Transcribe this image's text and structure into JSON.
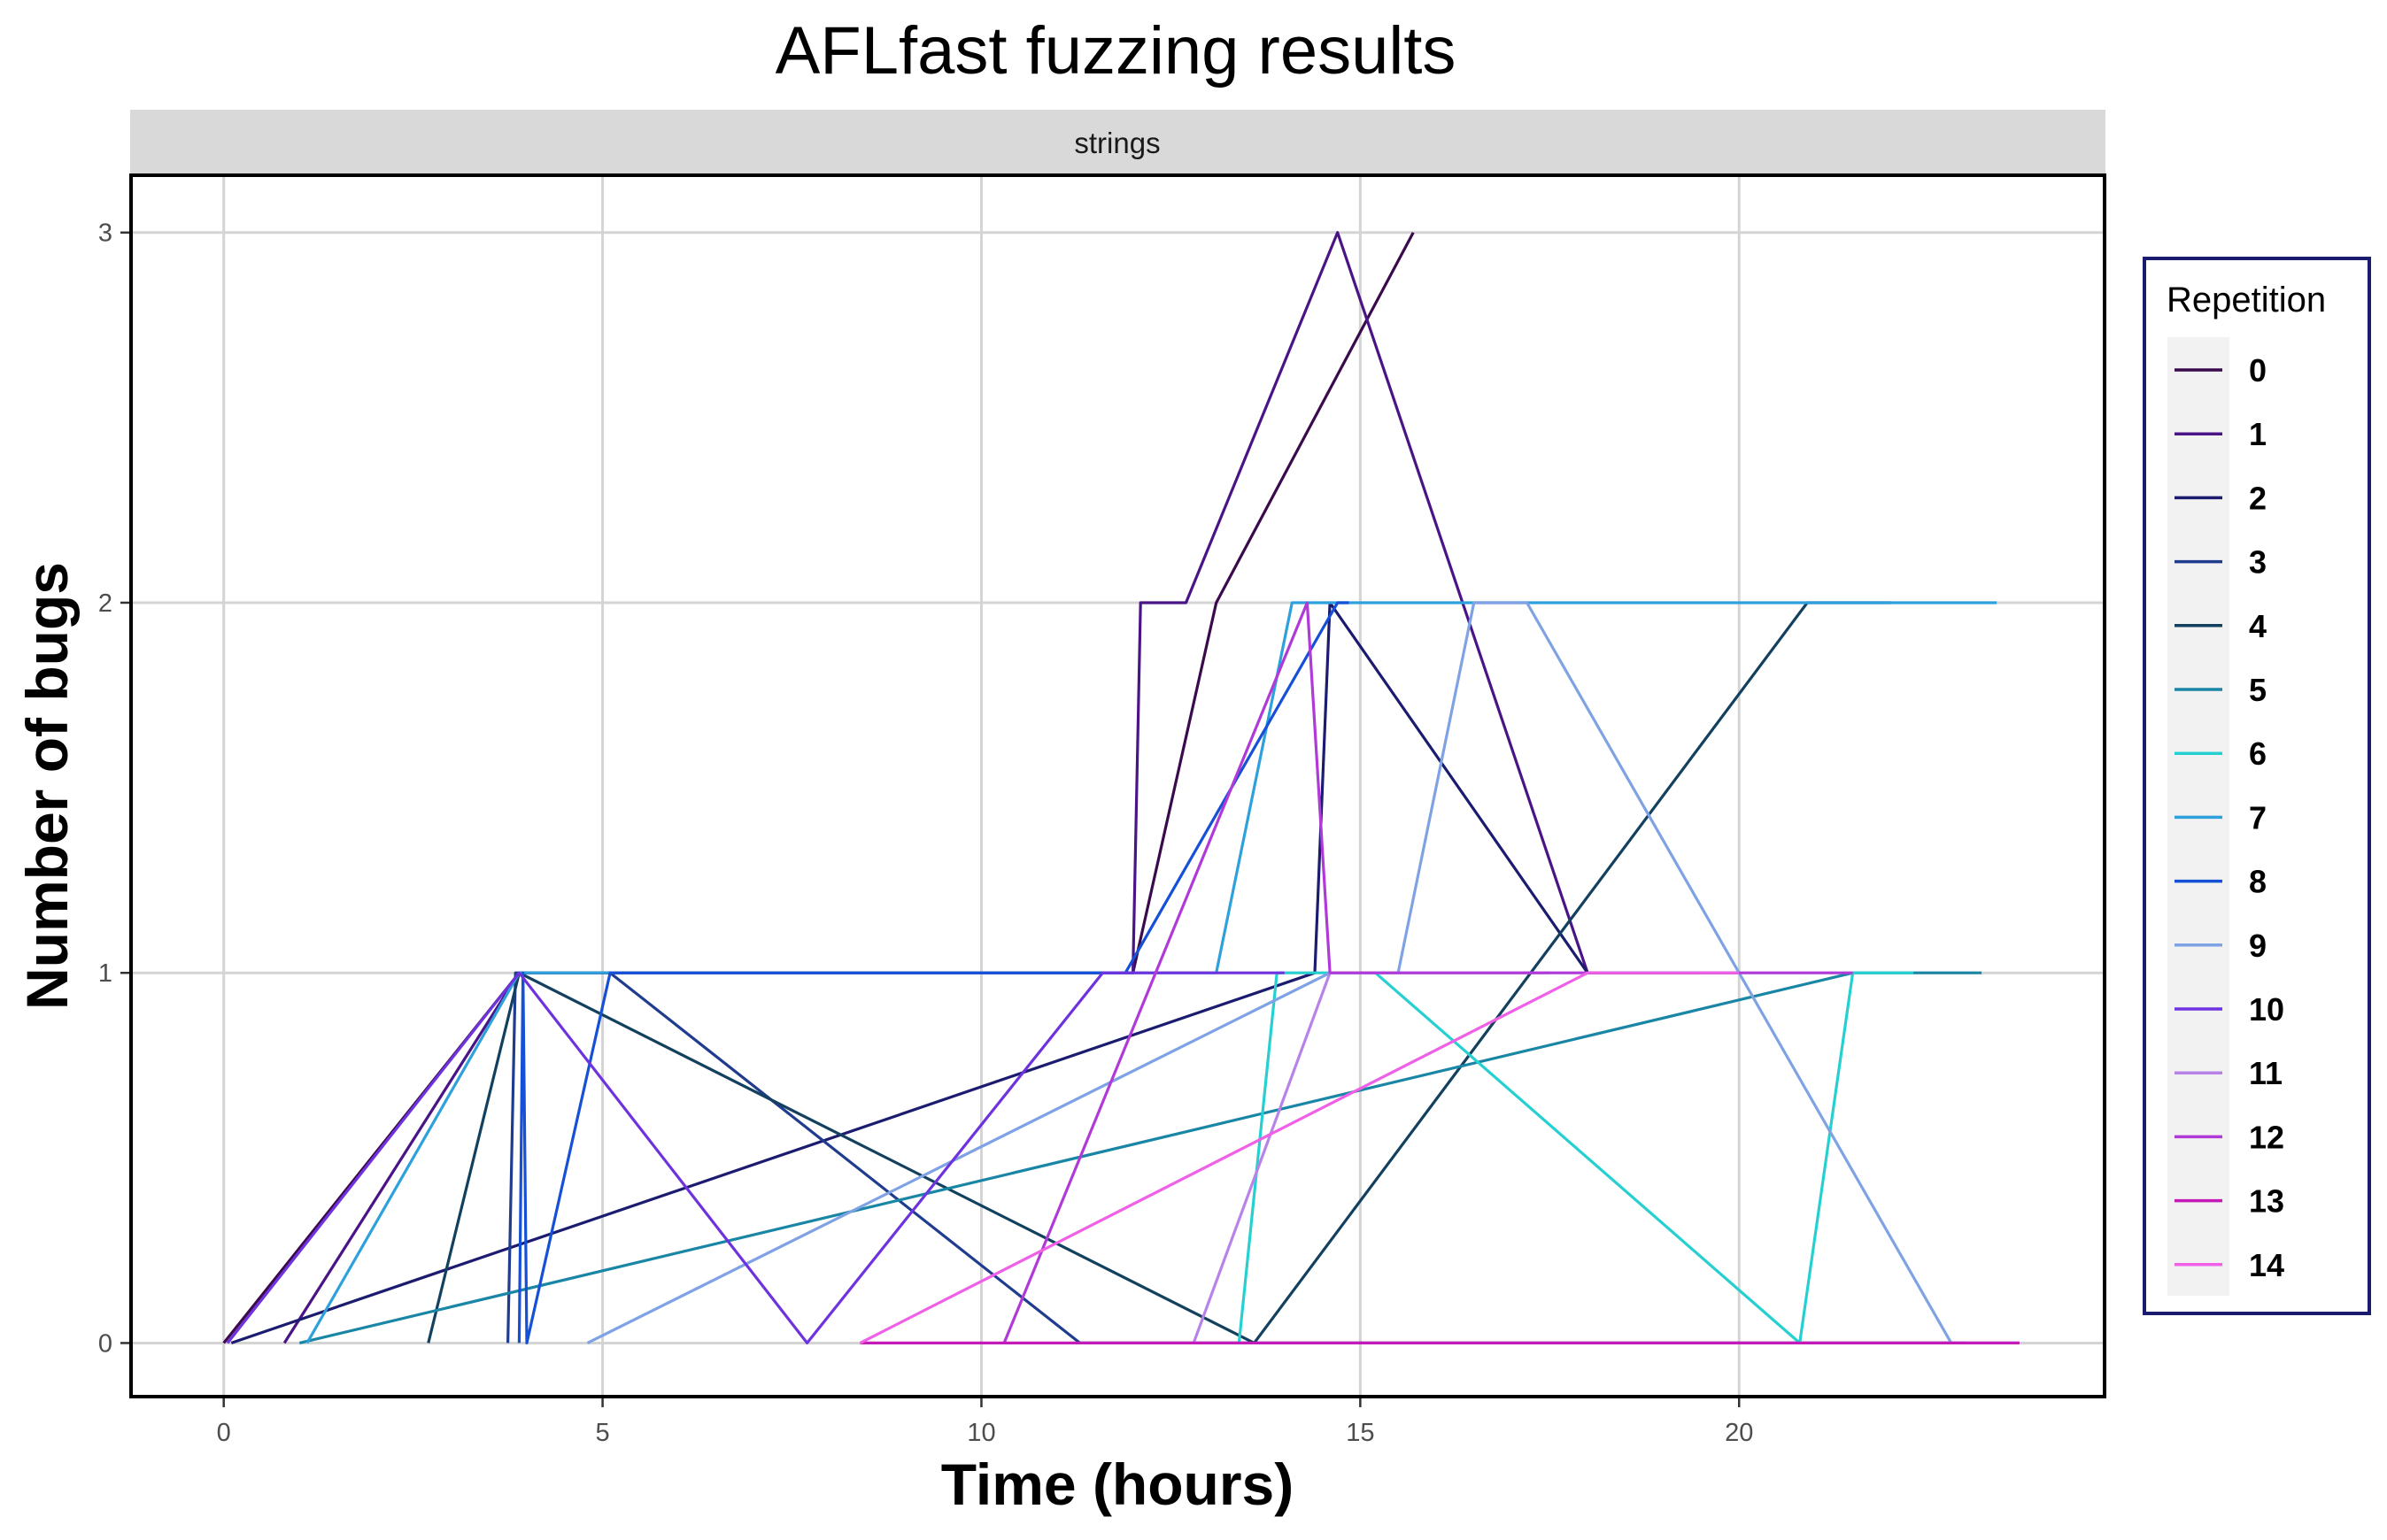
{
  "chart_data": {
    "type": "line",
    "title": "AFLfast fuzzing results",
    "facet": "strings",
    "xlabel": "Time (hours)",
    "ylabel": "Number of bugs",
    "xlim": [
      -1.2,
      24.8
    ],
    "ylim": [
      -0.14,
      3.15
    ],
    "xticks": [
      0,
      5,
      10,
      15,
      20
    ],
    "yticks": [
      0,
      1,
      2,
      3
    ],
    "grid": true,
    "legend": {
      "title": "Repetition",
      "position": "right"
    },
    "series": [
      {
        "name": "0",
        "color": "#3b0a4c",
        "points": [
          [
            0.0,
            0
          ],
          [
            3.9,
            1
          ],
          [
            12.0,
            1
          ],
          [
            13.1,
            2
          ],
          [
            15.7,
            3
          ]
        ]
      },
      {
        "name": "1",
        "color": "#4a1486",
        "points": [
          [
            0.8,
            0
          ],
          [
            3.9,
            1
          ],
          [
            12.0,
            1
          ],
          [
            12.1,
            2
          ],
          [
            12.7,
            2
          ],
          [
            14.7,
            3
          ],
          [
            18.0,
            1
          ],
          [
            19.5,
            1
          ]
        ]
      },
      {
        "name": "2",
        "color": "#1b1b70",
        "points": [
          [
            0.1,
            0
          ],
          [
            14.4,
            1
          ],
          [
            14.6,
            2
          ],
          [
            18.0,
            1
          ],
          [
            20.0,
            1
          ]
        ]
      },
      {
        "name": "3",
        "color": "#1f3c8f",
        "points": [
          [
            3.75,
            0
          ],
          [
            3.85,
            1
          ],
          [
            5.1,
            1
          ],
          [
            11.3,
            0
          ],
          [
            23.0,
            0
          ]
        ]
      },
      {
        "name": "4",
        "color": "#12405e",
        "points": [
          [
            2.7,
            0
          ],
          [
            3.9,
            1
          ],
          [
            13.6,
            0
          ],
          [
            20.9,
            2
          ],
          [
            22.0,
            2
          ]
        ]
      },
      {
        "name": "5",
        "color": "#1a86a6",
        "points": [
          [
            1.0,
            0
          ],
          [
            21.5,
            1
          ],
          [
            23.2,
            1
          ]
        ]
      },
      {
        "name": "6",
        "color": "#26d0d0",
        "points": [
          [
            13.4,
            0
          ],
          [
            13.9,
            1
          ],
          [
            15.2,
            1
          ],
          [
            20.8,
            0
          ],
          [
            21.5,
            1
          ],
          [
            22.3,
            1
          ]
        ]
      },
      {
        "name": "7",
        "color": "#2ea0dc",
        "points": [
          [
            1.1,
            0
          ],
          [
            3.9,
            1
          ],
          [
            13.1,
            1
          ],
          [
            14.1,
            2
          ],
          [
            23.4,
            2
          ]
        ]
      },
      {
        "name": "8",
        "color": "#1550d6",
        "points": [
          [
            3.9,
            0
          ],
          [
            3.95,
            1
          ],
          [
            4.0,
            0
          ],
          [
            5.1,
            1
          ],
          [
            11.9,
            1
          ],
          [
            14.7,
            2
          ],
          [
            14.85,
            2
          ]
        ]
      },
      {
        "name": "9",
        "color": "#7ea2e4",
        "points": [
          [
            4.8,
            0
          ],
          [
            14.6,
            1
          ],
          [
            15.5,
            1
          ],
          [
            16.5,
            2
          ],
          [
            17.2,
            2
          ],
          [
            22.8,
            0
          ],
          [
            23.7,
            0
          ]
        ]
      },
      {
        "name": "10",
        "color": "#6e32de",
        "points": [
          [
            0.05,
            0
          ],
          [
            3.9,
            1
          ],
          [
            7.7,
            0
          ],
          [
            11.6,
            1
          ],
          [
            14.0,
            1
          ]
        ]
      },
      {
        "name": "11",
        "color": "#b882e8",
        "points": [
          [
            12.8,
            0
          ],
          [
            14.6,
            1
          ],
          [
            17.5,
            1
          ]
        ]
      },
      {
        "name": "12",
        "color": "#b03ad8",
        "points": [
          [
            10.3,
            0
          ],
          [
            14.3,
            2
          ],
          [
            14.6,
            1
          ],
          [
            17.0,
            1
          ],
          [
            21.5,
            1
          ]
        ]
      },
      {
        "name": "13",
        "color": "#c41ab8",
        "points": [
          [
            8.4,
            0
          ],
          [
            23.7,
            0
          ]
        ]
      },
      {
        "name": "14",
        "color": "#f060e6",
        "points": [
          [
            8.4,
            0
          ],
          [
            18.0,
            1
          ],
          [
            20.0,
            1
          ]
        ]
      }
    ]
  }
}
